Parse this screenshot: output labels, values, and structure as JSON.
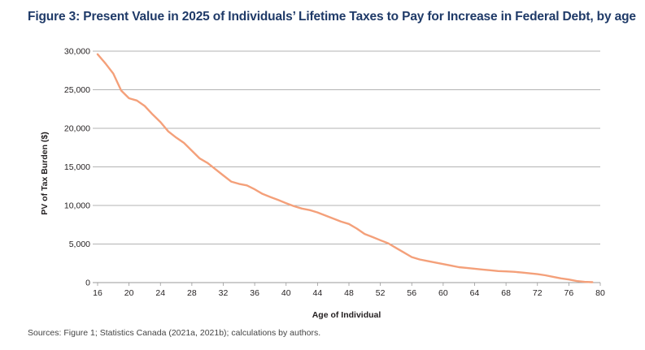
{
  "header": {
    "title": "Figure 3: Present Value in 2025 of Individuals’ Lifetime Taxes to Pay for Increase in Federal Debt, by age"
  },
  "footer": {
    "source": "Sources: Figure 1; Statistics Canada (2021a, 2021b); calculations by authors."
  },
  "colors": {
    "title": "#1f3a68",
    "line": "#f4a07a",
    "grid": "#9a9a9a"
  },
  "chart_data": {
    "type": "line",
    "title": "Figure 3: Present Value in 2025 of Individuals’ Lifetime Taxes to Pay for Increase in Federal Debt, by age",
    "xlabel": "Age of Individual",
    "ylabel": "PV of Tax Burden ($)",
    "xlim": [
      16,
      80
    ],
    "ylim": [
      0,
      30000
    ],
    "grid": true,
    "x_ticks": [
      "16",
      "20",
      "24",
      "28",
      "32",
      "36",
      "40",
      "44",
      "48",
      "52",
      "56",
      "60",
      "64",
      "68",
      "72",
      "76",
      "80"
    ],
    "y_ticks": [
      "0",
      "5,000",
      "10,000",
      "15,000",
      "20,000",
      "25,000",
      "30,000"
    ],
    "y_tick_values": [
      0,
      5000,
      10000,
      15000,
      20000,
      25000,
      30000
    ],
    "series": [
      {
        "name": "PV of Tax Burden",
        "x": [
          16,
          17,
          18,
          19,
          20,
          21,
          22,
          23,
          24,
          25,
          26,
          27,
          28,
          29,
          30,
          31,
          32,
          33,
          34,
          35,
          36,
          37,
          38,
          39,
          40,
          41,
          42,
          43,
          44,
          45,
          46,
          47,
          48,
          49,
          50,
          51,
          52,
          53,
          54,
          55,
          56,
          57,
          58,
          59,
          60,
          61,
          62,
          63,
          64,
          65,
          66,
          67,
          68,
          69,
          70,
          71,
          72,
          73,
          74,
          75,
          76,
          77,
          78,
          79
        ],
        "values": [
          29600,
          28400,
          27100,
          24900,
          23900,
          23600,
          22900,
          21800,
          20800,
          19600,
          18800,
          18100,
          17100,
          16100,
          15500,
          14700,
          13900,
          13100,
          12800,
          12600,
          12100,
          11500,
          11100,
          10700,
          10300,
          9900,
          9600,
          9400,
          9100,
          8700,
          8300,
          7900,
          7600,
          7000,
          6300,
          5900,
          5500,
          5100,
          4500,
          3900,
          3300,
          3000,
          2800,
          2600,
          2400,
          2200,
          2000,
          1900,
          1800,
          1700,
          1600,
          1500,
          1450,
          1400,
          1300,
          1200,
          1100,
          950,
          750,
          550,
          400,
          200,
          100,
          50
        ]
      }
    ]
  }
}
